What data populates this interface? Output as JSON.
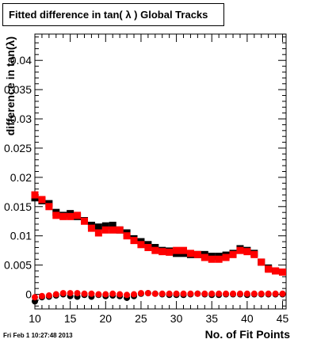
{
  "chart_data": {
    "type": "scatter",
    "title": "Fitted difference in tan( λ )  Global Tracks",
    "xlabel": "No. of Fit Points",
    "ylabel": "difference in tan(λ)",
    "xlim": [
      10,
      45.5
    ],
    "ylim": [
      -0.0025,
      0.0445
    ],
    "x_ticks": [
      "10",
      "15",
      "20",
      "25",
      "30",
      "35",
      "40",
      "45"
    ],
    "y_ticks": [
      "0",
      "0.005",
      "0.01",
      "0.015",
      "0.02",
      "0.025",
      "0.03",
      "0.035",
      "0.04"
    ],
    "grid": false,
    "series": [
      {
        "color": "#000000",
        "x": [
          10,
          11,
          12,
          13,
          14,
          15,
          16,
          17,
          18,
          19,
          20,
          21,
          22,
          23,
          24,
          25,
          26,
          27,
          28,
          29,
          30,
          31,
          32,
          33,
          34,
          35,
          36,
          37,
          38,
          39,
          40,
          41,
          42,
          43,
          44,
          45
        ],
        "y": [
          0.0165,
          0.016,
          0.0155,
          0.014,
          0.0135,
          0.0138,
          0.0133,
          0.0126,
          0.0118,
          0.0115,
          0.0117,
          0.0118,
          0.011,
          0.0105,
          0.0095,
          0.009,
          0.0085,
          0.008,
          0.0075,
          0.0074,
          0.007,
          0.007,
          0.0068,
          0.0068,
          0.0068,
          0.0065,
          0.0065,
          0.0067,
          0.007,
          0.0078,
          0.0075,
          0.007,
          0.0055,
          0.0045,
          0.004,
          0.0038
        ]
      },
      {
        "color": "#ff0000",
        "x": [
          10,
          11,
          12,
          13,
          14,
          15,
          16,
          17,
          18,
          19,
          20,
          21,
          22,
          23,
          24,
          25,
          26,
          27,
          28,
          29,
          30,
          31,
          32,
          33,
          34,
          35,
          36,
          37,
          38,
          39,
          40,
          41,
          42,
          43,
          44,
          45
        ],
        "y": [
          0.017,
          0.0162,
          0.015,
          0.0135,
          0.0133,
          0.0133,
          0.0135,
          0.0125,
          0.0113,
          0.0105,
          0.011,
          0.011,
          0.011,
          0.01,
          0.0092,
          0.0085,
          0.008,
          0.0075,
          0.0073,
          0.0072,
          0.0075,
          0.0075,
          0.007,
          0.0068,
          0.0063,
          0.006,
          0.006,
          0.0063,
          0.0068,
          0.0075,
          0.0073,
          0.0068,
          0.0055,
          0.0043,
          0.004,
          0.0038
        ]
      },
      {
        "color": "#000000",
        "x": [
          10,
          11,
          12,
          13,
          14,
          15,
          16,
          17,
          18,
          19,
          20,
          21,
          22,
          23,
          24,
          25,
          26,
          27,
          28,
          29,
          30,
          31,
          32,
          33,
          34,
          35,
          36,
          37,
          38,
          39,
          40,
          41,
          42,
          43,
          44,
          45
        ],
        "y": [
          -0.0012,
          -0.0005,
          -0.0004,
          -0.0002,
          0.0,
          -0.0003,
          -0.0004,
          -0.0001,
          -0.0004,
          -0.0001,
          -0.0003,
          -0.0002,
          -0.0003,
          -0.0006,
          -0.0003,
          0.0001,
          0.0002,
          0.0001,
          0.0,
          -0.0001,
          -0.0001,
          -0.0001,
          0.0,
          0.0001,
          0.0,
          -0.0001,
          -0.0001,
          0.0,
          0.0,
          0.0,
          -0.0001,
          0.0,
          0.0,
          0.0,
          0.0,
          0.0
        ]
      },
      {
        "color": "#ff0000",
        "x": [
          10,
          11,
          12,
          13,
          14,
          15,
          16,
          17,
          18,
          19,
          20,
          21,
          22,
          23,
          24,
          25,
          26,
          27,
          28,
          29,
          30,
          31,
          32,
          33,
          34,
          35,
          36,
          37,
          38,
          39,
          40,
          41,
          42,
          43,
          44,
          45
        ],
        "y": [
          -0.0005,
          -0.0003,
          -0.0002,
          0.0,
          0.0002,
          0.0002,
          0.0002,
          0.0001,
          0.0001,
          0.0,
          0.0,
          0.0001,
          0.0,
          -0.0001,
          0.0,
          0.0002,
          0.0002,
          0.0001,
          0.0001,
          0.0001,
          0.0001,
          0.0001,
          0.0001,
          0.0001,
          0.0001,
          0.0001,
          0.0001,
          0.0001,
          0.0001,
          0.0001,
          0.0001,
          0.0001,
          0.0001,
          0.0001,
          0.0001,
          0.0001
        ]
      }
    ]
  },
  "footer": {
    "timestamp": "Fri Feb  1 10:27:48 2013"
  }
}
